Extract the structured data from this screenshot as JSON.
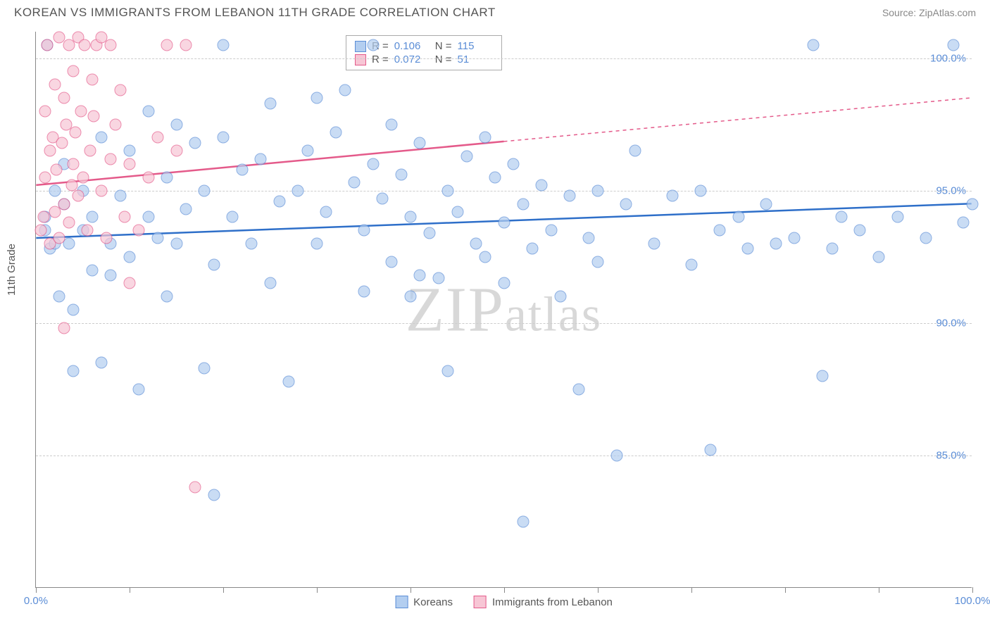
{
  "header": {
    "title": "KOREAN VS IMMIGRANTS FROM LEBANON 11TH GRADE CORRELATION CHART",
    "source": "Source: ZipAtlas.com"
  },
  "chart": {
    "type": "scatter",
    "ylabel": "11th Grade",
    "watermark": "ZIPatlas",
    "background_color": "#ffffff",
    "grid_color": "#cccccc",
    "axis_color": "#888888",
    "xlim": [
      0,
      100
    ],
    "ylim": [
      80,
      101
    ],
    "yticks": [
      {
        "v": 85,
        "label": "85.0%"
      },
      {
        "v": 90,
        "label": "90.0%"
      },
      {
        "v": 95,
        "label": "95.0%"
      },
      {
        "v": 100,
        "label": "100.0%"
      }
    ],
    "xticks": [
      0,
      10,
      20,
      30,
      40,
      50,
      60,
      70,
      80,
      90,
      100
    ],
    "xtick_labels": [
      {
        "v": 0,
        "label": "0.0%"
      },
      {
        "v": 100,
        "label": "100.0%"
      }
    ],
    "series": [
      {
        "name": "Koreans",
        "fill_color": "#b3cef0",
        "stroke_color": "#5b8dd6",
        "line_color": "#2e6fc9",
        "marker_radius": 8.5,
        "trend": {
          "x1": 0,
          "y1": 93.2,
          "x2": 100,
          "y2": 94.5,
          "solid_until": 100
        },
        "R": "0.106",
        "N": "115",
        "points": [
          [
            1,
            93.5
          ],
          [
            1,
            94
          ],
          [
            1.5,
            92.8
          ],
          [
            2,
            93
          ],
          [
            2,
            95
          ],
          [
            2.5,
            91
          ],
          [
            3,
            94.5
          ],
          [
            3,
            96
          ],
          [
            3.5,
            93
          ],
          [
            4,
            88.2
          ],
          [
            4,
            90.5
          ],
          [
            5,
            93.5
          ],
          [
            5,
            95
          ],
          [
            6,
            92
          ],
          [
            6,
            94
          ],
          [
            7,
            97
          ],
          [
            7,
            88.5
          ],
          [
            8,
            93
          ],
          [
            8,
            91.8
          ],
          [
            9,
            94.8
          ],
          [
            10,
            96.5
          ],
          [
            10,
            92.5
          ],
          [
            11,
            87.5
          ],
          [
            12,
            94
          ],
          [
            12,
            98
          ],
          [
            13,
            93.2
          ],
          [
            14,
            95.5
          ],
          [
            14,
            91
          ],
          [
            15,
            97.5
          ],
          [
            15,
            93
          ],
          [
            16,
            94.3
          ],
          [
            17,
            96.8
          ],
          [
            18,
            88.3
          ],
          [
            18,
            95
          ],
          [
            19,
            92.2
          ],
          [
            20,
            97
          ],
          [
            20,
            100.5
          ],
          [
            21,
            94
          ],
          [
            22,
            95.8
          ],
          [
            23,
            93
          ],
          [
            24,
            96.2
          ],
          [
            25,
            98.3
          ],
          [
            25,
            91.5
          ],
          [
            26,
            94.6
          ],
          [
            27,
            87.8
          ],
          [
            28,
            95
          ],
          [
            29,
            96.5
          ],
          [
            30,
            98.5
          ],
          [
            30,
            93
          ],
          [
            31,
            94.2
          ],
          [
            32,
            97.2
          ],
          [
            33,
            98.8
          ],
          [
            34,
            95.3
          ],
          [
            35,
            93.5
          ],
          [
            35,
            91.2
          ],
          [
            36,
            96
          ],
          [
            37,
            94.7
          ],
          [
            38,
            97.5
          ],
          [
            38,
            92.3
          ],
          [
            39,
            95.6
          ],
          [
            40,
            91
          ],
          [
            40,
            94
          ],
          [
            41,
            96.8
          ],
          [
            42,
            93.4
          ],
          [
            43,
            91.7
          ],
          [
            44,
            95
          ],
          [
            44,
            88.2
          ],
          [
            45,
            94.2
          ],
          [
            46,
            96.3
          ],
          [
            47,
            93
          ],
          [
            48,
            97
          ],
          [
            48,
            92.5
          ],
          [
            49,
            95.5
          ],
          [
            50,
            93.8
          ],
          [
            50,
            91.5
          ],
          [
            51,
            96
          ],
          [
            52,
            94.5
          ],
          [
            52,
            82.5
          ],
          [
            53,
            92.8
          ],
          [
            54,
            95.2
          ],
          [
            55,
            93.5
          ],
          [
            56,
            91
          ],
          [
            57,
            94.8
          ],
          [
            58,
            87.5
          ],
          [
            59,
            93.2
          ],
          [
            60,
            95
          ],
          [
            60,
            92.3
          ],
          [
            62,
            85
          ],
          [
            63,
            94.5
          ],
          [
            64,
            96.5
          ],
          [
            66,
            93
          ],
          [
            68,
            94.8
          ],
          [
            70,
            92.2
          ],
          [
            71,
            95
          ],
          [
            72,
            85.2
          ],
          [
            73,
            93.5
          ],
          [
            75,
            94
          ],
          [
            76,
            92.8
          ],
          [
            78,
            94.5
          ],
          [
            79,
            93
          ],
          [
            81,
            93.2
          ],
          [
            83,
            100.5
          ],
          [
            84,
            88
          ],
          [
            85,
            92.8
          ],
          [
            86,
            94
          ],
          [
            88,
            93.5
          ],
          [
            90,
            92.5
          ],
          [
            92,
            94
          ],
          [
            95,
            93.2
          ],
          [
            98,
            100.5
          ],
          [
            99,
            93.8
          ],
          [
            100,
            94.5
          ],
          [
            19,
            83.5
          ],
          [
            41,
            91.8
          ],
          [
            36,
            100.5
          ],
          [
            1.2,
            100.5
          ]
        ]
      },
      {
        "name": "Immigrants from Lebanon",
        "fill_color": "#f7c6d5",
        "stroke_color": "#e45a8a",
        "line_color": "#e45a8a",
        "marker_radius": 8.5,
        "trend": {
          "x1": 0,
          "y1": 95.2,
          "x2": 100,
          "y2": 98.5,
          "solid_until": 50
        },
        "R": "0.072",
        "N": "51",
        "points": [
          [
            0.5,
            93.5
          ],
          [
            0.8,
            94
          ],
          [
            1,
            95.5
          ],
          [
            1,
            98
          ],
          [
            1.2,
            100.5
          ],
          [
            1.5,
            93
          ],
          [
            1.5,
            96.5
          ],
          [
            1.8,
            97
          ],
          [
            2,
            94.2
          ],
          [
            2,
            99
          ],
          [
            2.2,
            95.8
          ],
          [
            2.5,
            100.8
          ],
          [
            2.5,
            93.2
          ],
          [
            2.8,
            96.8
          ],
          [
            3,
            98.5
          ],
          [
            3,
            94.5
          ],
          [
            3.2,
            97.5
          ],
          [
            3.5,
            100.5
          ],
          [
            3.5,
            93.8
          ],
          [
            3.8,
            95.2
          ],
          [
            4,
            99.5
          ],
          [
            4,
            96
          ],
          [
            4.2,
            97.2
          ],
          [
            4.5,
            100.8
          ],
          [
            4.5,
            94.8
          ],
          [
            4.8,
            98
          ],
          [
            5,
            95.5
          ],
          [
            5.2,
            100.5
          ],
          [
            5.5,
            93.5
          ],
          [
            5.8,
            96.5
          ],
          [
            6,
            99.2
          ],
          [
            6.2,
            97.8
          ],
          [
            6.5,
            100.5
          ],
          [
            7,
            95
          ],
          [
            7,
            100.8
          ],
          [
            7.5,
            93.2
          ],
          [
            8,
            100.5
          ],
          [
            8,
            96.2
          ],
          [
            8.5,
            97.5
          ],
          [
            9,
            98.8
          ],
          [
            9.5,
            94
          ],
          [
            10,
            96
          ],
          [
            11,
            93.5
          ],
          [
            12,
            95.5
          ],
          [
            13,
            97
          ],
          [
            14,
            100.5
          ],
          [
            3,
            89.8
          ],
          [
            10,
            91.5
          ],
          [
            16,
            100.5
          ],
          [
            17,
            83.8
          ],
          [
            15,
            96.5
          ]
        ]
      }
    ],
    "legend": [
      {
        "label": "Koreans",
        "fill": "#b3cef0",
        "stroke": "#5b8dd6"
      },
      {
        "label": "Immigrants from Lebanon",
        "fill": "#f7c6d5",
        "stroke": "#e45a8a"
      }
    ]
  }
}
